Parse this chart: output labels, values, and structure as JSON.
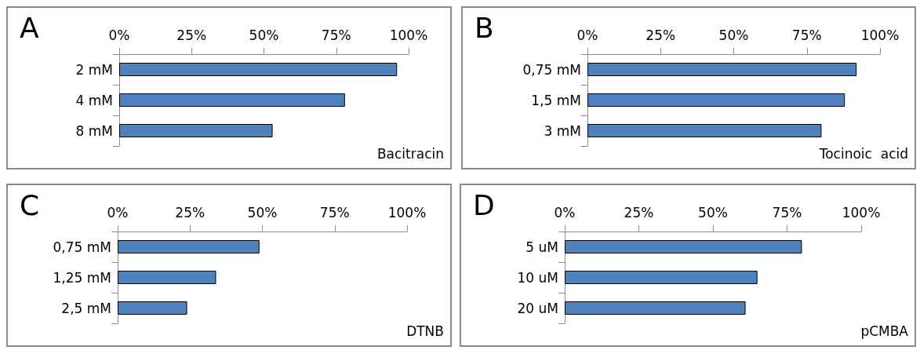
{
  "chart_data": [
    {
      "type": "bar",
      "orientation": "horizontal",
      "title": "A",
      "categories": [
        "2 mM",
        "4 mM",
        "8 mM"
      ],
      "values": [
        96,
        78,
        53
      ],
      "color": "#4f81bd",
      "xlim": [
        0,
        100
      ],
      "xticks": [
        {
          "value": 0,
          "label": "0%"
        },
        {
          "value": 25,
          "label": "25%"
        },
        {
          "value": 50,
          "label": "50%"
        },
        {
          "value": 75,
          "label": "75%"
        },
        {
          "value": 100,
          "label": "100%"
        }
      ],
      "annotations": [
        "Bacitracin"
      ],
      "grid": false
    },
    {
      "type": "bar",
      "orientation": "horizontal",
      "title": "B",
      "categories": [
        "0,75 mM",
        "1,5 mM",
        "3 mM"
      ],
      "values": [
        92,
        88,
        80
      ],
      "color": "#4f81bd",
      "xlim": [
        0,
        100
      ],
      "xticks": [
        {
          "value": 0,
          "label": "0%"
        },
        {
          "value": 25,
          "label": "25%"
        },
        {
          "value": 50,
          "label": "50%"
        },
        {
          "value": 75,
          "label": "75%"
        },
        {
          "value": 100,
          "label": "100%"
        }
      ],
      "annotations": [
        "Tocinoic  acid"
      ],
      "grid": false
    },
    {
      "type": "bar",
      "orientation": "horizontal",
      "title": "C",
      "categories": [
        "0,75 mM",
        "1,25 mM",
        "2,5 mM"
      ],
      "values": [
        49,
        34,
        24
      ],
      "color": "#4f81bd",
      "xlim": [
        0,
        100
      ],
      "xticks": [
        {
          "value": 0,
          "label": "0%"
        },
        {
          "value": 25,
          "label": "25%"
        },
        {
          "value": 50,
          "label": "50%"
        },
        {
          "value": 75,
          "label": "75%"
        },
        {
          "value": 100,
          "label": "100%"
        }
      ],
      "annotations": [
        "DTNB"
      ],
      "grid": false
    },
    {
      "type": "bar",
      "orientation": "horizontal",
      "title": "D",
      "categories": [
        "5 uM",
        "10 uM",
        "20 uM"
      ],
      "values": [
        80,
        65,
        61
      ],
      "color": "#4f81bd",
      "xlim": [
        0,
        100
      ],
      "xticks": [
        {
          "value": 0,
          "label": "0%"
        },
        {
          "value": 25,
          "label": "25%"
        },
        {
          "value": 50,
          "label": "50%"
        },
        {
          "value": 75,
          "label": "75%"
        },
        {
          "value": 100,
          "label": "100%"
        }
      ],
      "annotations": [
        "pCMBA"
      ],
      "grid": false
    }
  ]
}
